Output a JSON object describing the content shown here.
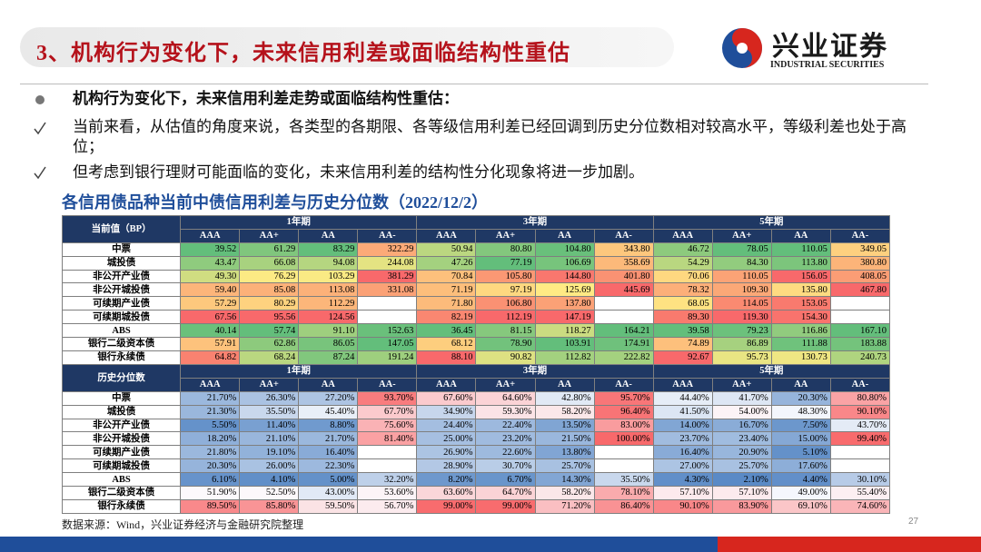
{
  "header": {
    "title": "3、机构行为变化下，未来信用利差或面临结构性重估",
    "logo": {
      "name": "兴业证券",
      "subtitle": "INDUSTRIAL SECURITIES"
    }
  },
  "bullets": {
    "main": "机构行为变化下，未来信用利差走势或面临结构性重估：",
    "points": [
      "当前来看，从估值的角度来说，各类型的各期限、各等级信用利差已经回调到历史分位数相对较高水平，等级利差也处于高位；",
      "但考虑到银行理财可能面临的变化，未来信用利差的结构性分化现象将进一步加剧。"
    ]
  },
  "caption": "各信用债品种当前中债信用利差与历史分位数（2022/12/2）",
  "tables": [
    {
      "corner": "当前值（BP）",
      "scale": "column",
      "periods": [
        "1年期",
        "3年期",
        "5年期"
      ],
      "grades": [
        "AAA",
        "AA+",
        "AA",
        "AA-"
      ],
      "rows": [
        {
          "label": "中票",
          "cells": [
            "39.52",
            "61.29",
            "83.29",
            "322.29",
            "50.94",
            "80.80",
            "104.80",
            "343.80",
            "46.72",
            "78.05",
            "110.05",
            "349.05"
          ]
        },
        {
          "label": "城投债",
          "cells": [
            "43.47",
            "66.08",
            "94.08",
            "244.08",
            "47.26",
            "77.19",
            "106.69",
            "358.69",
            "54.29",
            "84.30",
            "113.80",
            "380.80"
          ]
        },
        {
          "label": "非公开产业债",
          "cells": [
            "49.30",
            "76.29",
            "103.29",
            "381.29",
            "70.84",
            "105.80",
            "144.80",
            "401.80",
            "70.06",
            "110.05",
            "156.05",
            "408.05"
          ]
        },
        {
          "label": "非公开城投债",
          "cells": [
            "59.40",
            "85.08",
            "113.08",
            "331.08",
            "71.19",
            "97.19",
            "125.69",
            "445.69",
            "78.32",
            "109.30",
            "135.80",
            "467.80"
          ]
        },
        {
          "label": "可续期产业债",
          "cells": [
            "57.29",
            "80.29",
            "112.29",
            null,
            "71.80",
            "106.80",
            "137.80",
            null,
            "68.05",
            "114.05",
            "153.05",
            null
          ]
        },
        {
          "label": "可续期城投债",
          "cells": [
            "67.56",
            "95.56",
            "124.56",
            null,
            "82.19",
            "112.19",
            "147.19",
            null,
            "89.30",
            "119.30",
            "154.30",
            null
          ]
        },
        {
          "label": "ABS",
          "cells": [
            "40.14",
            "57.74",
            "91.10",
            "152.63",
            "36.45",
            "81.15",
            "118.27",
            "164.21",
            "39.58",
            "79.23",
            "116.86",
            "167.10"
          ]
        },
        {
          "label": "银行二级资本债",
          "cells": [
            "57.91",
            "62.86",
            "86.05",
            "147.05",
            "68.12",
            "78.90",
            "103.91",
            "174.91",
            "74.89",
            "86.89",
            "111.88",
            "183.88"
          ]
        },
        {
          "label": "银行永续债",
          "cells": [
            "64.82",
            "68.24",
            "87.24",
            "191.24",
            "88.10",
            "90.82",
            "112.82",
            "222.82",
            "92.67",
            "95.73",
            "130.73",
            "240.73"
          ]
        }
      ]
    },
    {
      "corner": "历史分位数",
      "scale": "table",
      "periods": [
        "1年期",
        "3年期",
        "5年期"
      ],
      "grades": [
        "AAA",
        "AA+",
        "AA",
        "AA-"
      ],
      "rows": [
        {
          "label": "中票",
          "cells": [
            "21.70%",
            "26.30%",
            "27.20%",
            "93.70%",
            "67.60%",
            "64.60%",
            "42.80%",
            "95.70%",
            "44.40%",
            "41.70%",
            "20.30%",
            "80.80%"
          ]
        },
        {
          "label": "城投债",
          "cells": [
            "21.30%",
            "35.50%",
            "45.40%",
            "67.70%",
            "34.90%",
            "59.30%",
            "58.20%",
            "96.40%",
            "41.50%",
            "54.00%",
            "48.30%",
            "90.10%"
          ]
        },
        {
          "label": "非公开产业债",
          "cells": [
            "5.50%",
            "11.40%",
            "8.80%",
            "75.60%",
            "24.40%",
            "22.40%",
            "13.50%",
            "83.00%",
            "14.00%",
            "16.70%",
            "7.50%",
            "43.70%"
          ]
        },
        {
          "label": "非公开城投债",
          "cells": [
            "18.20%",
            "21.10%",
            "21.70%",
            "81.40%",
            "25.00%",
            "23.20%",
            "21.50%",
            "100.00%",
            "23.70%",
            "23.40%",
            "15.00%",
            "99.40%"
          ]
        },
        {
          "label": "可续期产业债",
          "cells": [
            "21.80%",
            "19.10%",
            "16.40%",
            null,
            "26.90%",
            "22.60%",
            "13.80%",
            null,
            "16.40%",
            "20.90%",
            "5.10%",
            null
          ]
        },
        {
          "label": "可续期城投债",
          "cells": [
            "20.30%",
            "26.00%",
            "22.30%",
            null,
            "28.90%",
            "30.70%",
            "25.70%",
            null,
            "27.00%",
            "25.70%",
            "17.60%",
            null
          ]
        },
        {
          "label": "ABS",
          "cells": [
            "6.10%",
            "4.10%",
            "5.00%",
            "32.20%",
            "8.20%",
            "6.70%",
            "14.30%",
            "35.50%",
            "4.30%",
            "2.10%",
            "4.40%",
            "30.10%"
          ]
        },
        {
          "label": "银行二级资本债",
          "cells": [
            "51.90%",
            "52.50%",
            "43.00%",
            "53.60%",
            "63.60%",
            "64.70%",
            "58.20%",
            "78.10%",
            "57.10%",
            "57.10%",
            "49.00%",
            "55.40%"
          ]
        },
        {
          "label": "银行永续债",
          "cells": [
            "89.50%",
            "85.80%",
            "59.50%",
            "56.70%",
            "99.00%",
            "99.00%",
            "71.20%",
            "86.40%",
            "90.10%",
            "83.90%",
            "69.10%",
            "74.60%"
          ]
        }
      ]
    }
  ],
  "source": "数据来源：Wind，兴业证券经济与金融研究院整理",
  "page": "27"
}
